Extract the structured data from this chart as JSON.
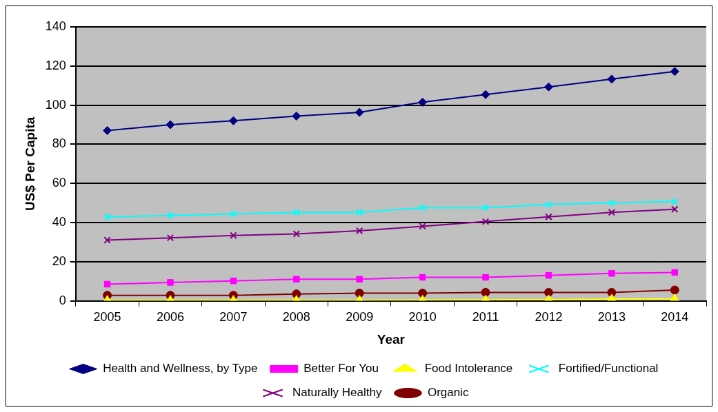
{
  "chart_data": {
    "type": "line",
    "xlabel": "Year",
    "ylabel": "US$ Per Capita",
    "categories": [
      "2005",
      "2006",
      "2007",
      "2008",
      "2009",
      "2010",
      "2011",
      "2012",
      "2013",
      "2014"
    ],
    "ylim": [
      0,
      140
    ],
    "yticks": [
      0,
      20,
      40,
      60,
      80,
      100,
      120,
      140
    ],
    "grid": "y",
    "legend": "bottom",
    "line_style": "solid",
    "series": [
      {
        "name": "Health and Wellness, by Type",
        "color": "#000080",
        "marker": "diamond",
        "values": [
          87,
          90,
          92,
          94.4,
          96.3,
          101.5,
          105.4,
          109.3,
          113.3,
          117.2
        ]
      },
      {
        "name": "Better For You",
        "color": "#ff00ff",
        "marker": "square",
        "values": [
          8.5,
          9.4,
          10.2,
          11,
          11,
          12,
          12,
          13,
          14,
          14.5
        ]
      },
      {
        "name": "Food Intolerance",
        "color": "#ffff00",
        "marker": "triangle",
        "values": [
          0.3,
          0.3,
          0.3,
          0.3,
          0.3,
          0.4,
          0.5,
          0.6,
          0.9,
          1
        ]
      },
      {
        "name": "Fortified/Functional",
        "color": "#00ffff",
        "marker": "cross",
        "values": [
          42.9,
          43.6,
          44.4,
          45.2,
          45.2,
          47.6,
          47.6,
          49.2,
          50,
          50.7
        ]
      },
      {
        "name": "Naturally Healthy",
        "color": "#800080",
        "marker": "cross",
        "values": [
          31,
          32.2,
          33.4,
          34.2,
          35.8,
          38.1,
          40.5,
          42.9,
          45.2,
          46.8
        ]
      },
      {
        "name": "Organic",
        "color": "#800000",
        "marker": "circle",
        "values": [
          2.8,
          2.8,
          2.8,
          3.5,
          3.9,
          3.9,
          4.3,
          4.3,
          4.3,
          5.5
        ]
      }
    ]
  }
}
